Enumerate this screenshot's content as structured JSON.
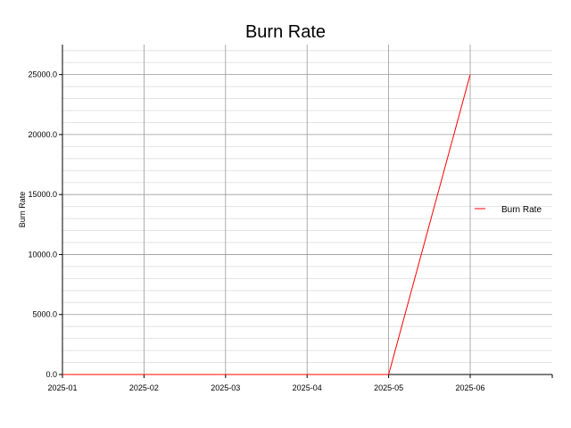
{
  "chart_data": {
    "type": "line",
    "title": "Burn Rate",
    "xlabel": "",
    "ylabel": "Burn Rate",
    "x": [
      "2025-01",
      "2025-02",
      "2025-03",
      "2025-04",
      "2025-05",
      "2025-06"
    ],
    "series": [
      {
        "name": "Burn Rate",
        "color": "#ff0000",
        "values": [
          0,
          0,
          0,
          0,
          0,
          25000
        ]
      }
    ],
    "xticks": [
      "2025-01",
      "2025-02",
      "2025-03",
      "2025-04",
      "2025-05",
      "2025-06"
    ],
    "ylim": [
      0,
      27500
    ],
    "yticks": [
      0,
      5000,
      10000,
      15000,
      20000,
      25000
    ],
    "ytick_labels": [
      "0.0",
      "5000.0",
      "10000.0",
      "15000.0",
      "20000.0",
      "25000.0"
    ],
    "minor_ytick_step": 1000,
    "grid": true,
    "legend_position": "right"
  }
}
